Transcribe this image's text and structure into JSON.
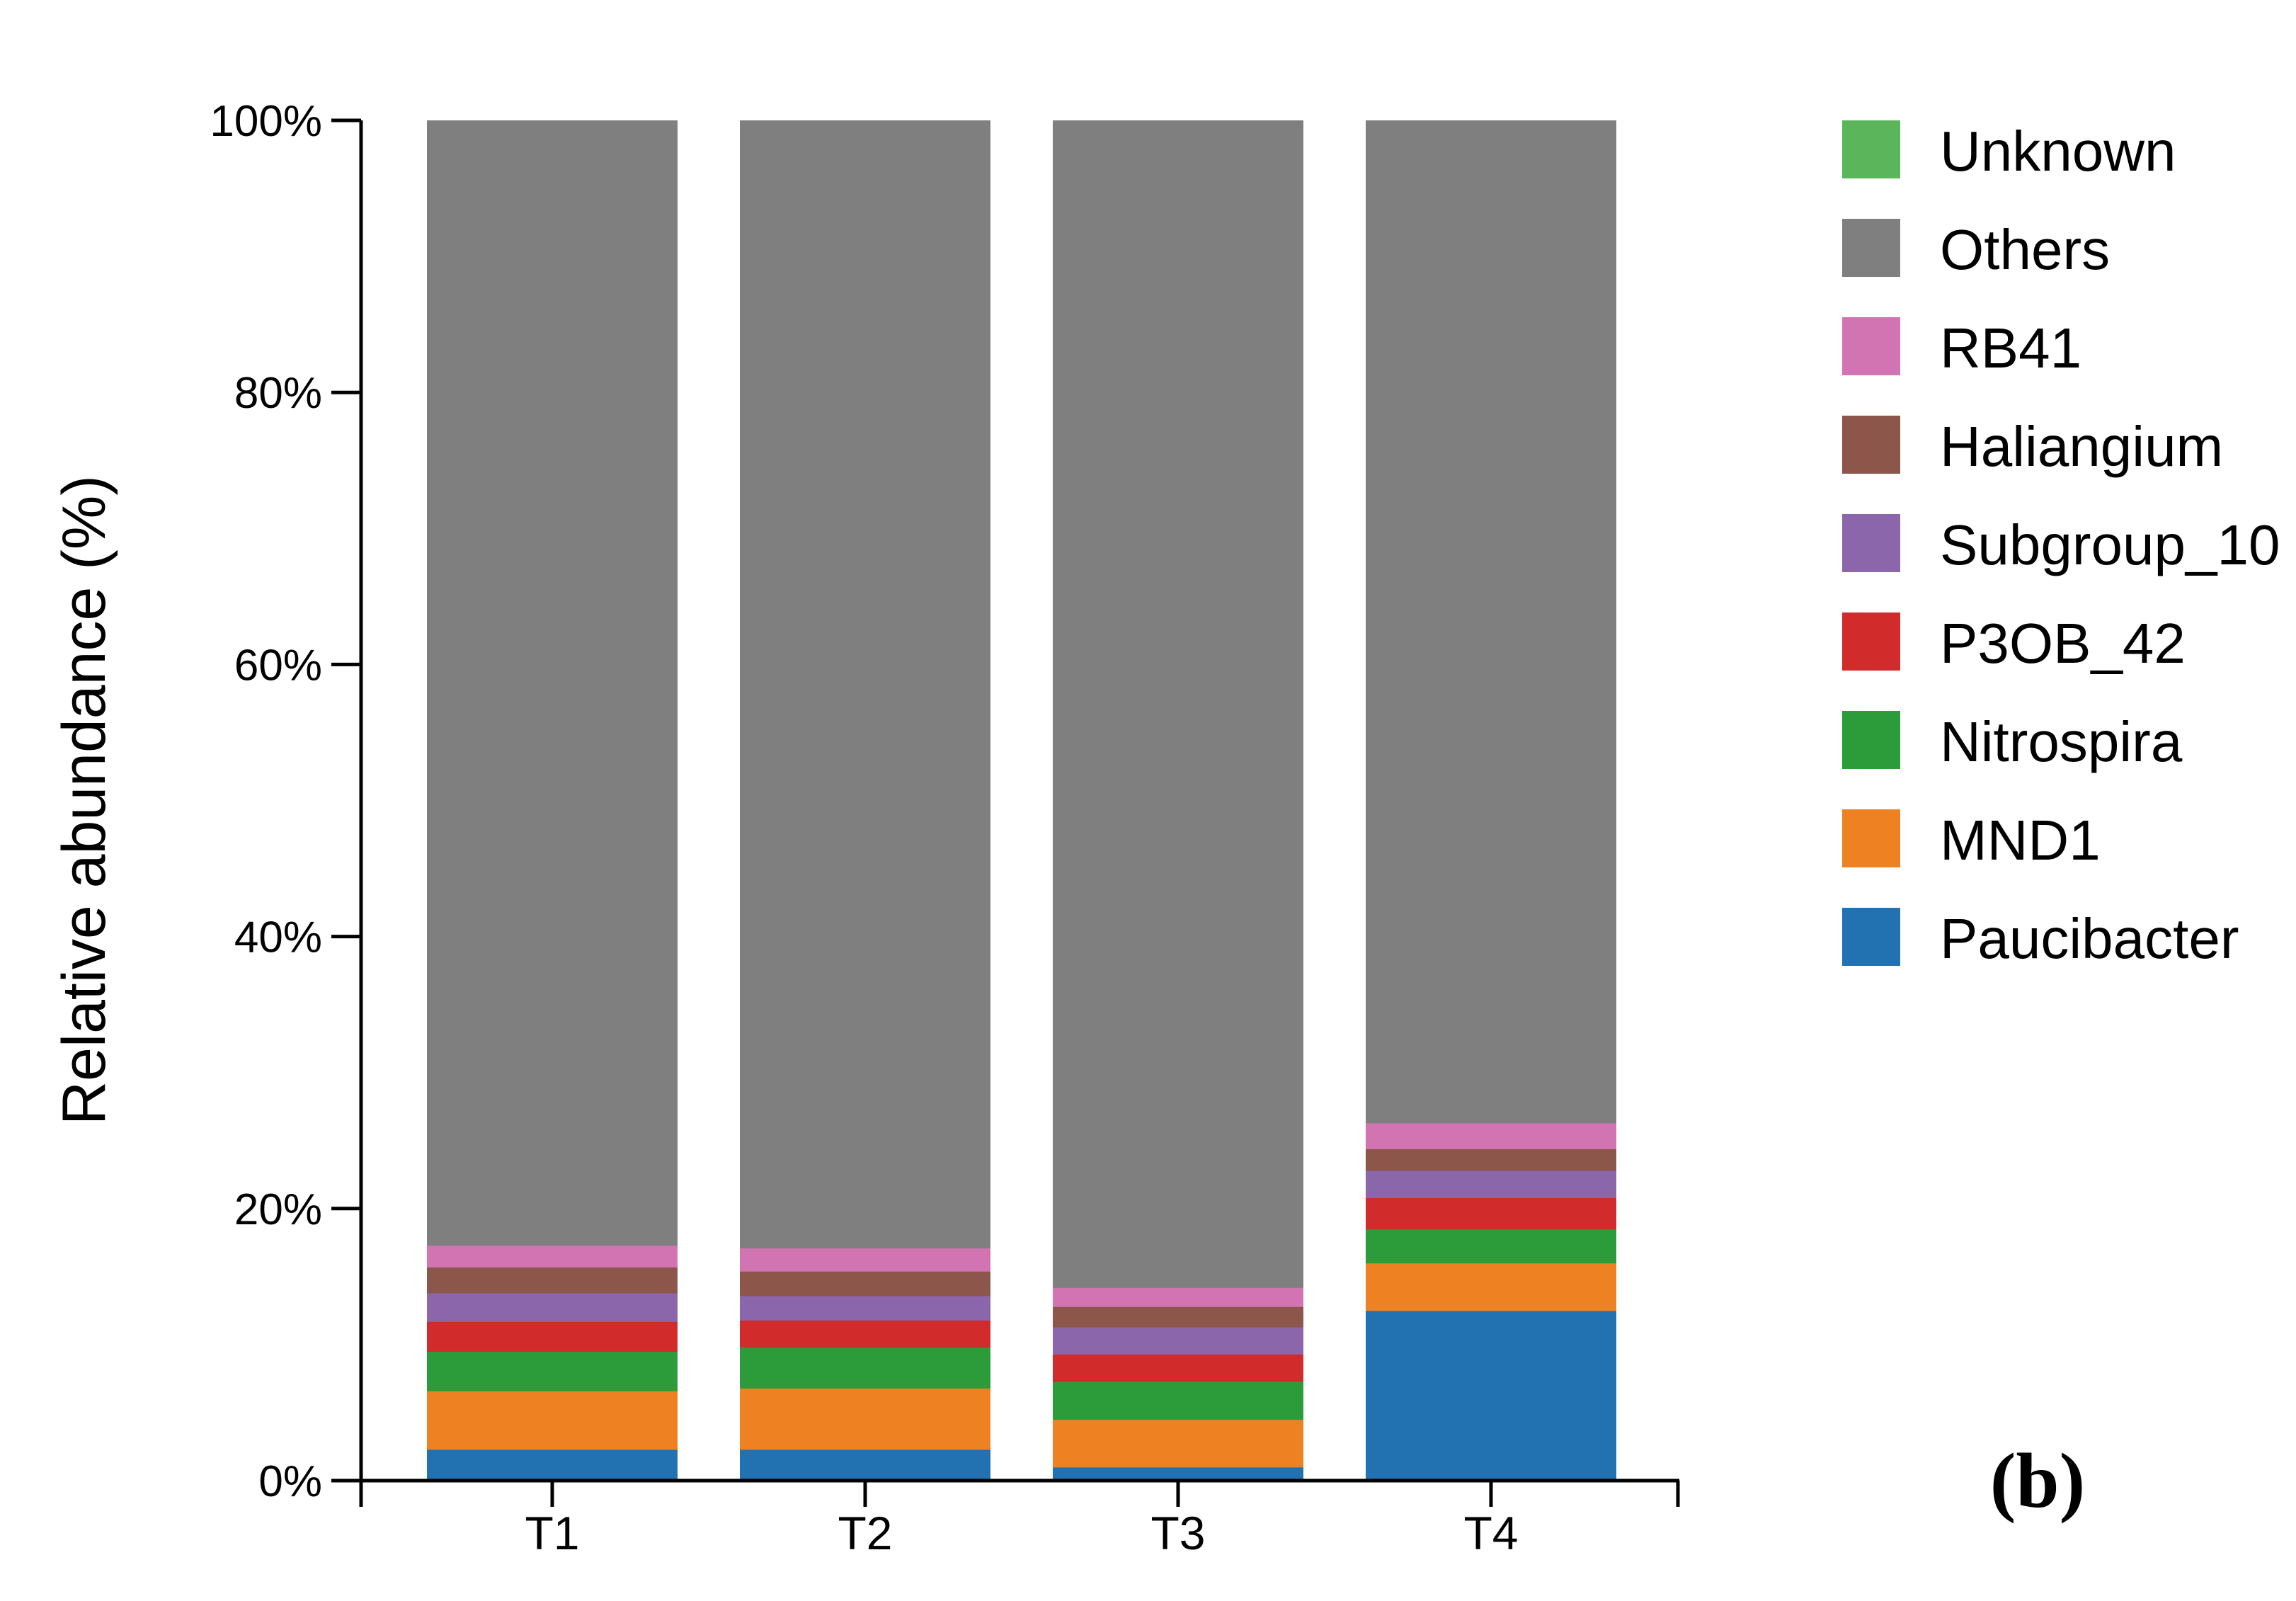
{
  "chart_data": {
    "type": "bar",
    "stacked": true,
    "categories": [
      "T1",
      "T2",
      "T3",
      "T4"
    ],
    "ylabel": "Relative abundance (%)",
    "ylim": [
      0,
      100
    ],
    "yticks": [
      "0%",
      "20%",
      "40%",
      "60%",
      "80%",
      "100%"
    ],
    "legend_position": "right",
    "panel_label": "(b)",
    "series": [
      {
        "name": "Paucibacter",
        "color": "#2271b0",
        "values": [
          2.3,
          2.3,
          1.0,
          12.5
        ]
      },
      {
        "name": "MND1",
        "color": "#ee8122",
        "values": [
          4.3,
          4.5,
          3.5,
          3.5
        ]
      },
      {
        "name": "Nitrospira",
        "color": "#2c9c3a",
        "values": [
          2.9,
          3.0,
          2.8,
          2.5
        ]
      },
      {
        "name": "P3OB_42",
        "color": "#d22b2b",
        "values": [
          2.2,
          2.0,
          2.0,
          2.3
        ]
      },
      {
        "name": "Subgroup_10",
        "color": "#8b66aa",
        "values": [
          2.1,
          1.8,
          2.0,
          2.0
        ]
      },
      {
        "name": "Haliangium",
        "color": "#8c564b",
        "values": [
          1.9,
          1.8,
          1.5,
          1.6
        ]
      },
      {
        "name": "RB41",
        "color": "#d274b2",
        "values": [
          1.6,
          1.7,
          1.4,
          1.9
        ]
      },
      {
        "name": "Others",
        "color": "#7f7f7f",
        "values": [
          82.7,
          82.9,
          85.8,
          73.7
        ]
      },
      {
        "name": "Unknown",
        "color": "#5bb65b",
        "values": [
          0,
          0,
          0,
          0
        ]
      }
    ]
  }
}
